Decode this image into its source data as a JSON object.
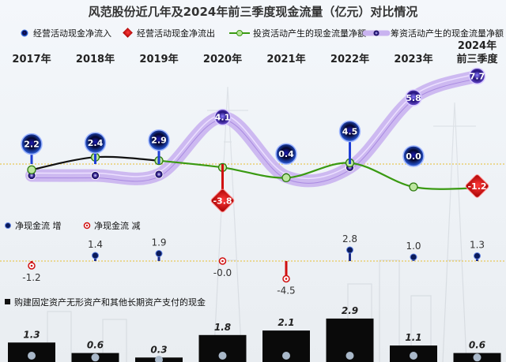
{
  "chart_data": {
    "type": "line",
    "title": "风范股份近几年及2024年前三季度现金流量（亿元）对比情况",
    "categories": [
      "2017年",
      "2018年",
      "2019年",
      "2020年",
      "2021年",
      "2022年",
      "2023年",
      "2024年前三季度"
    ],
    "category_lines": [
      [
        "2017年"
      ],
      [
        "2018年"
      ],
      [
        "2019年"
      ],
      [
        "2020年"
      ],
      [
        "2021年"
      ],
      [
        "2022年"
      ],
      [
        "2023年"
      ],
      [
        "2024年",
        "前三季度"
      ]
    ],
    "legend": {
      "operating_in": "经营活动现金净流入",
      "operating_out": "经营活动现金净流出",
      "investing": "投资活动产生的现金流量净额",
      "financing": "筹资活动产生的现金流量净额"
    },
    "series": [
      {
        "name": "经营活动现金净流入/净流出",
        "values": [
          2.2,
          2.4,
          2.9,
          -3.8,
          0.4,
          4.5,
          0.0,
          -1.2
        ],
        "labels": [
          "2.2",
          "2.4",
          "2.9",
          "-3.8",
          "0.4",
          "4.5",
          "0.0",
          "-1.2"
        ]
      },
      {
        "name": "投资活动产生的现金流量净额",
        "values": [
          -0.5,
          0.6,
          0.3,
          -0.3,
          -1.2,
          0.1,
          -2.0,
          -2.1
        ]
      },
      {
        "name": "筹资活动产生的现金流量净额",
        "values": [
          -1.0,
          -1.0,
          -0.9,
          4.1,
          -1.1,
          -0.3,
          5.8,
          7.7
        ],
        "labels": [
          "",
          "",
          "",
          "4.1",
          "",
          "",
          "5.8",
          "7.7"
        ]
      }
    ],
    "net_cash_flow": {
      "legend_increase": "净现金流  增",
      "legend_decrease": "净现金流  减",
      "values": [
        -1.2,
        1.4,
        1.9,
        -0.0,
        -4.5,
        2.8,
        1.0,
        1.3
      ],
      "labels": [
        "-1.2",
        "1.4",
        "1.9",
        "-0.0",
        "-4.5",
        "2.8",
        "1.0",
        "1.3"
      ]
    },
    "capex": {
      "legend": "购建固定资产无形资产和其他长期资产支付的现金",
      "values": [
        1.3,
        0.6,
        0.3,
        1.8,
        2.1,
        2.9,
        1.1,
        0.6
      ],
      "labels": [
        "1.3",
        "0.6",
        "0.3",
        "1.8",
        "2.1",
        "2.9",
        "1.1",
        "0.6"
      ]
    },
    "colors": {
      "inflow": "#1f3fd6",
      "outflow": "#d01010",
      "investing_pos": "#111111",
      "investing_neg": "#3a9a12",
      "financing": "#b79be3",
      "bar": "#0a0a0a",
      "baseline": "#e8c85a"
    }
  }
}
